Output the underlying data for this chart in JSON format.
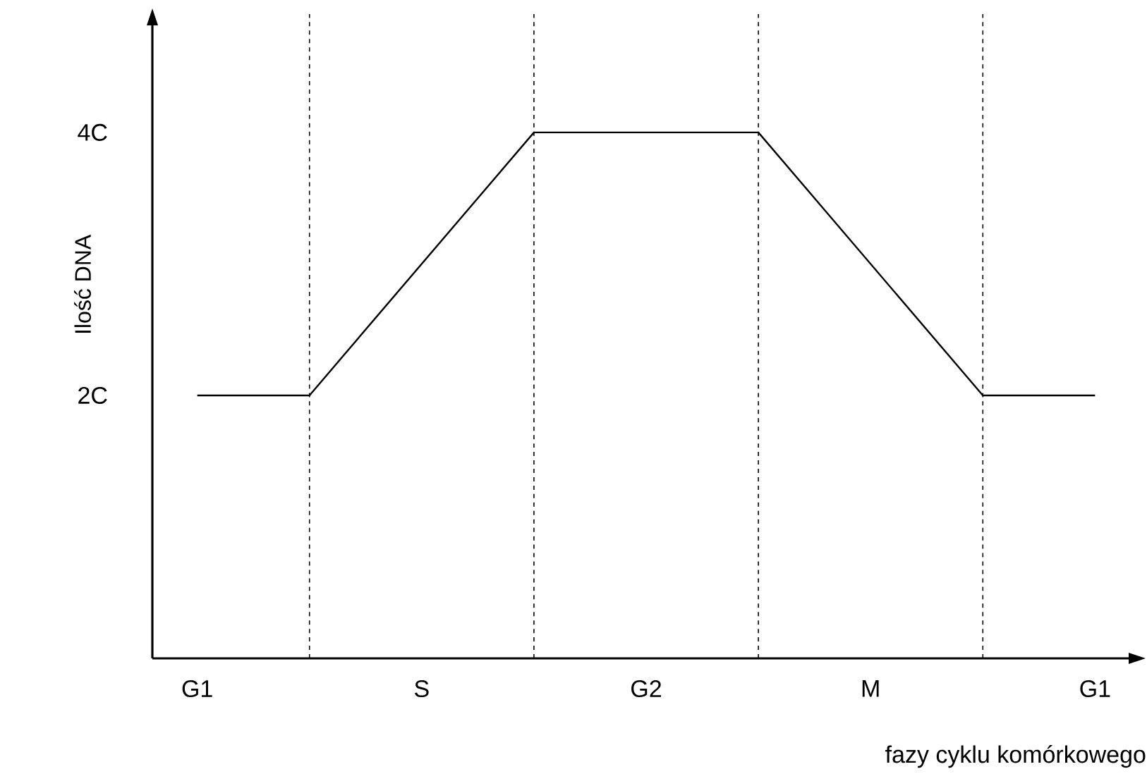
{
  "chart_data": {
    "type": "line",
    "xlabel": "fazy cyklu komórkowego",
    "ylabel": "Ilość DNA",
    "categories": [
      "G1",
      null,
      "S",
      null,
      "G2",
      null,
      "M",
      null,
      "G1"
    ],
    "series": [
      {
        "color": "#000000",
        "values": [
          2,
          2,
          3,
          4,
          4,
          4,
          3,
          2,
          2
        ]
      }
    ],
    "ylim": [
      0,
      4.9
    ],
    "yticks": [
      {
        "value": 2,
        "label": "2C"
      },
      {
        "value": 4,
        "label": "4C"
      }
    ],
    "grid": "x",
    "marker": "none",
    "line_style": "solid"
  }
}
